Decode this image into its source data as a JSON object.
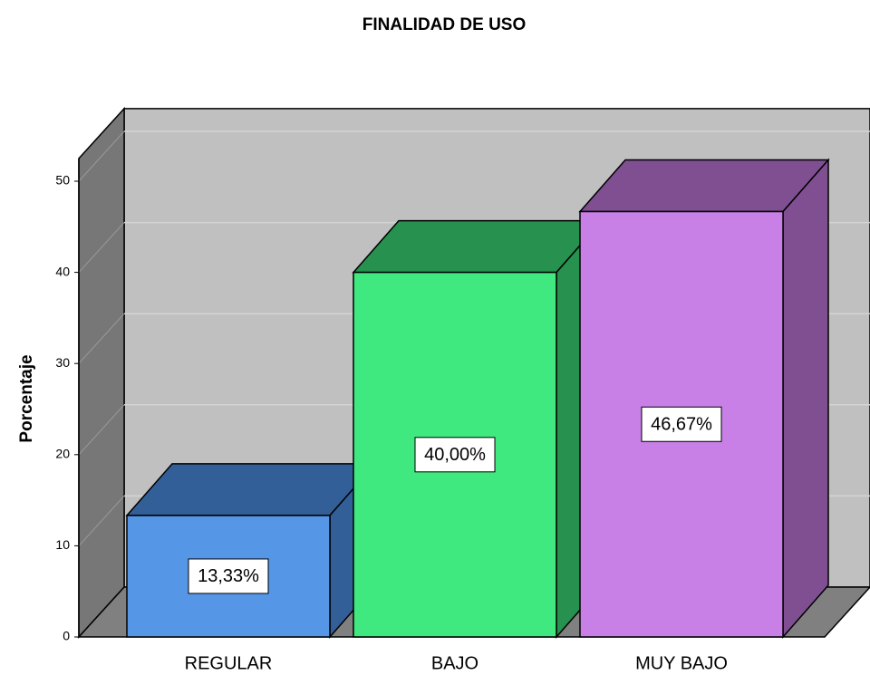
{
  "chart_data": {
    "type": "bar3d",
    "title": "FINALIDAD DE USO",
    "y_label": "Porcentaje",
    "categories": [
      "REGULAR",
      "BAJO",
      "MUY BAJO"
    ],
    "values": [
      13.33,
      40.0,
      46.67
    ],
    "value_labels": [
      "13,33%",
      "40,00%",
      "46,67%"
    ],
    "colors": [
      "#5596e6",
      "#3fe97f",
      "#c87fe6"
    ],
    "shade_colors": [
      "#335f98",
      "#27914f",
      "#7f4f92"
    ],
    "ylim": [
      0,
      52.5
    ],
    "yticks": [
      0,
      10,
      20,
      30,
      40,
      50
    ],
    "grid": true
  }
}
